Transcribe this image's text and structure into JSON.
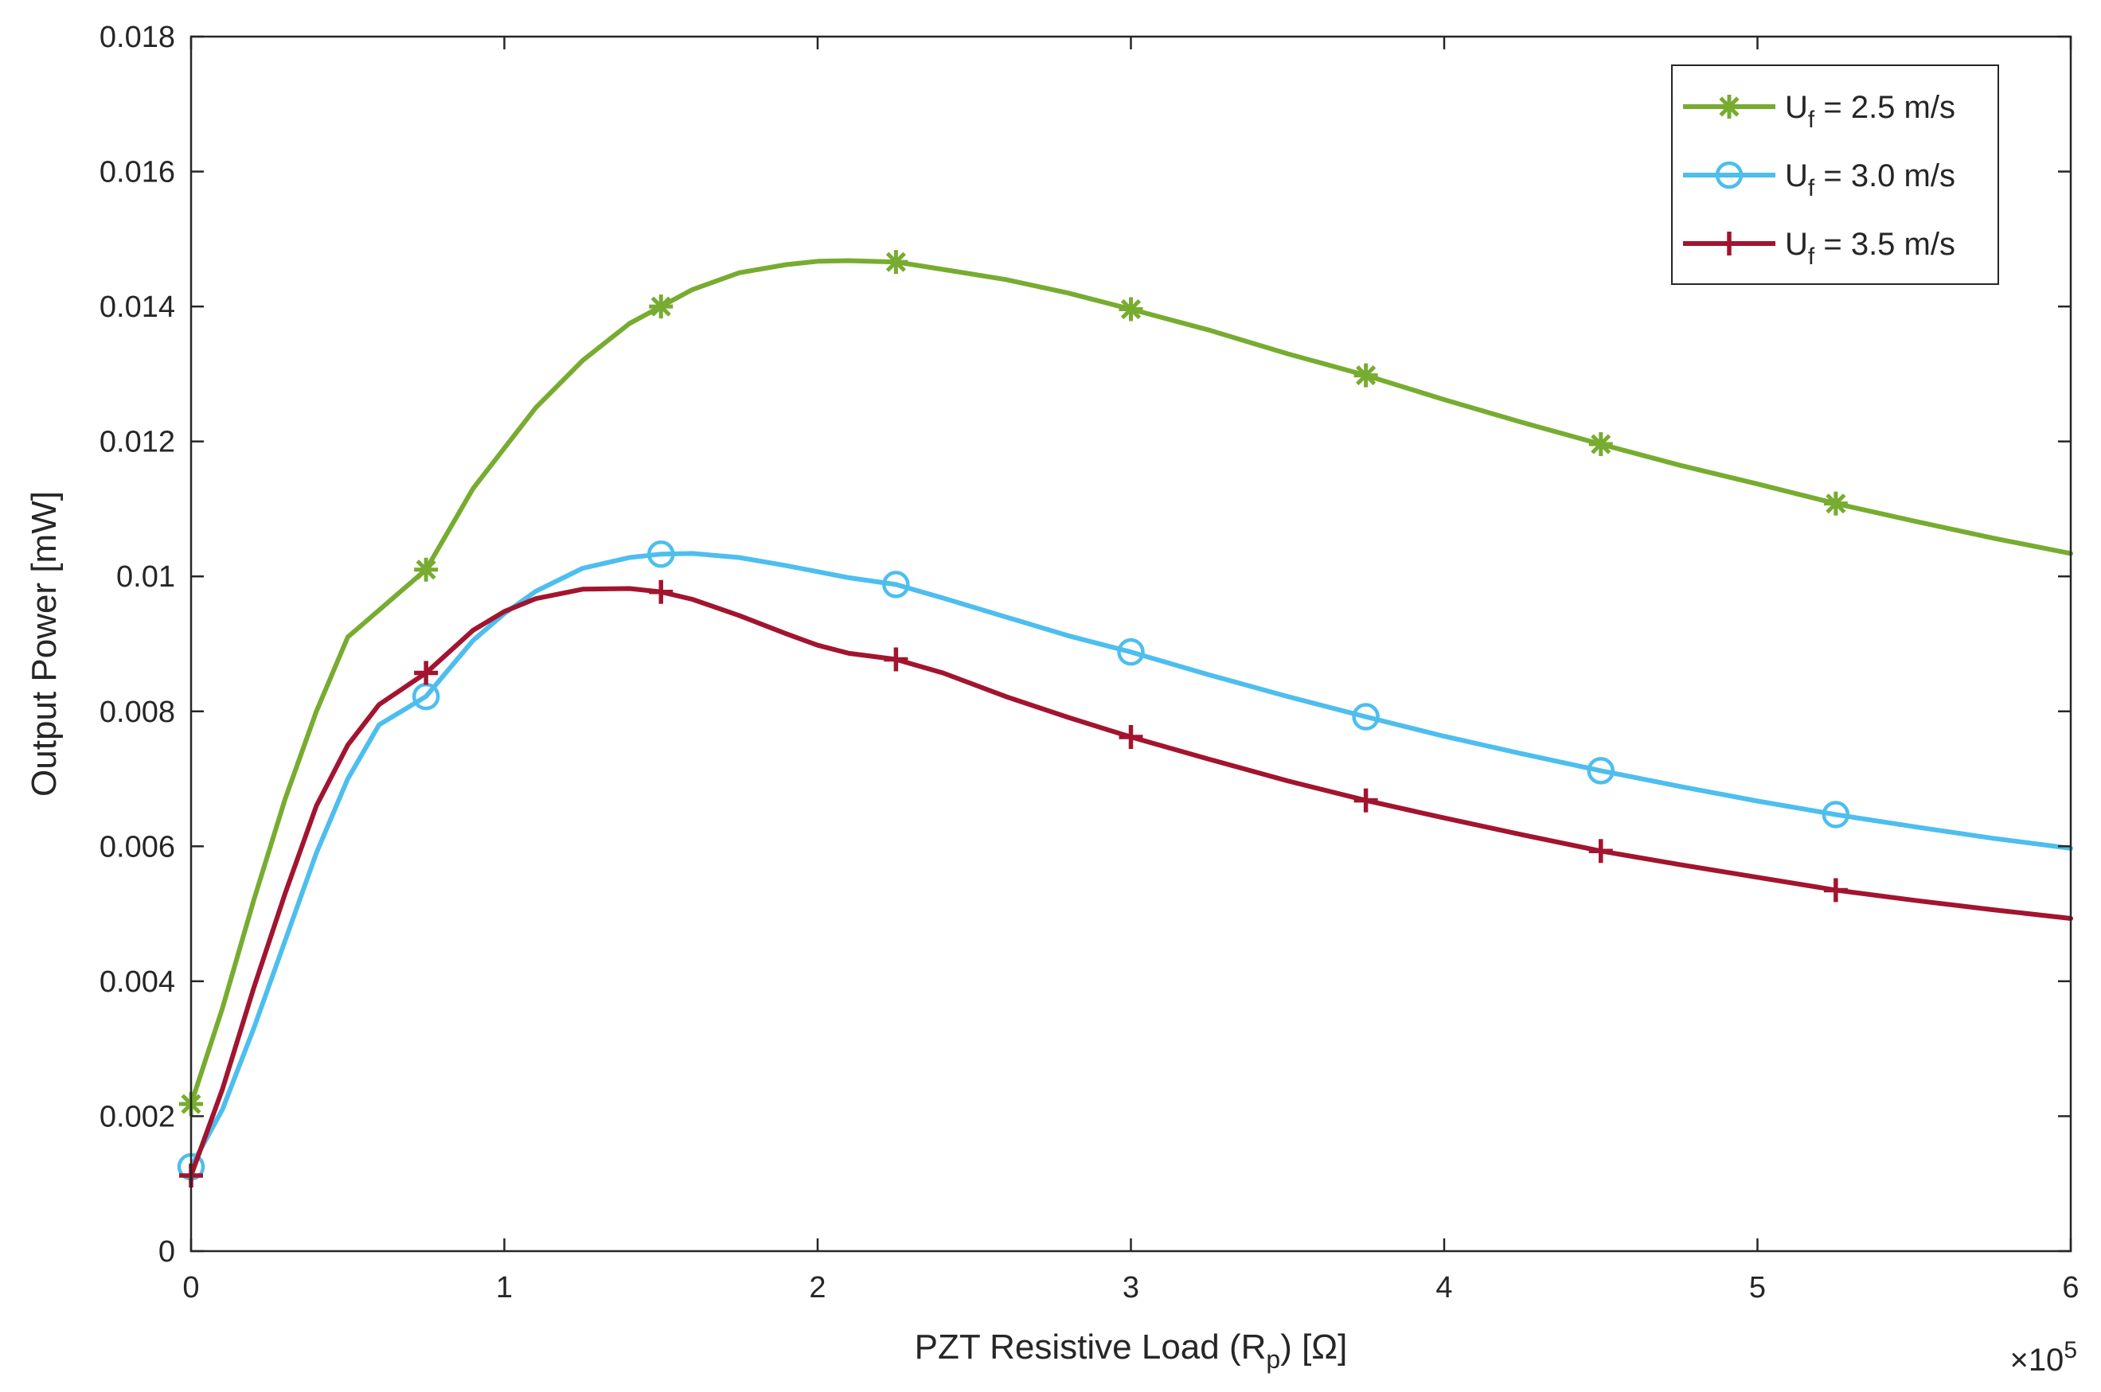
{
  "chart_data": {
    "type": "line",
    "title": "",
    "xlabel": "PZT Resistive Load (R_p) [Ω]",
    "xlabel_parts": {
      "pre": "PZT Resistive Load (R",
      "sub": "p",
      "post": ") [Ω]"
    },
    "ylabel": "Output Power [mW]",
    "xlim": [
      0,
      6
    ],
    "ylim": [
      0,
      0.018
    ],
    "x_exponent_label": {
      "base": "×10",
      "sup": "5"
    },
    "x_ticks": [
      0,
      1,
      2,
      3,
      4,
      5,
      6
    ],
    "x_tick_labels": [
      "0",
      "1",
      "2",
      "3",
      "4",
      "5",
      "6"
    ],
    "y_ticks": [
      0,
      0.002,
      0.004,
      0.006,
      0.008,
      0.01,
      0.012,
      0.014,
      0.016,
      0.018
    ],
    "y_tick_labels": [
      "0",
      "0.002",
      "0.004",
      "0.006",
      "0.008",
      "0.01",
      "0.012",
      "0.014",
      "0.016",
      "0.018"
    ],
    "grid": false,
    "legend_position": "top-right",
    "series": [
      {
        "name": "U_f = 2.5 m/s",
        "legend_parts": {
          "pre": "U",
          "sub": "f",
          "post": " = 2.5 m/s"
        },
        "color": "#77AC30",
        "marker": "asterisk",
        "marker_x": [
          0,
          0.75,
          1.5,
          2.25,
          3.0,
          3.75,
          4.5,
          5.25
        ],
        "marker_y": [
          0.00218,
          0.0101,
          0.014,
          0.01466,
          0.01396,
          0.01298,
          0.01196,
          0.01108
        ],
        "curve_x": [
          0,
          0.1,
          0.2,
          0.3,
          0.4,
          0.5,
          0.6,
          0.75,
          0.9,
          1.0,
          1.1,
          1.25,
          1.4,
          1.5,
          1.6,
          1.75,
          1.9,
          2.0,
          2.1,
          2.25,
          2.4,
          2.6,
          2.8,
          3.0,
          3.25,
          3.5,
          3.75,
          4.0,
          4.25,
          4.5,
          4.75,
          5.0,
          5.25,
          5.5,
          5.75,
          6.0
        ],
        "curve_y": [
          0.00218,
          0.0036,
          0.0052,
          0.0067,
          0.008,
          0.0091,
          0.0095,
          0.0101,
          0.0113,
          0.0119,
          0.0125,
          0.0132,
          0.01375,
          0.014,
          0.01425,
          0.0145,
          0.01462,
          0.01467,
          0.01468,
          0.01466,
          0.01455,
          0.0144,
          0.0142,
          0.01396,
          0.01365,
          0.0133,
          0.01298,
          0.01262,
          0.01228,
          0.01196,
          0.01165,
          0.01137,
          0.01108,
          0.01082,
          0.01057,
          0.01034
        ]
      },
      {
        "name": "U_f = 3.0 m/s",
        "legend_parts": {
          "pre": "U",
          "sub": "f",
          "post": " = 3.0 m/s"
        },
        "color": "#4DBEEE",
        "marker": "circle",
        "marker_x": [
          0,
          0.75,
          1.5,
          2.25,
          3.0,
          3.75,
          4.5,
          5.25
        ],
        "marker_y": [
          0.00125,
          0.00822,
          0.01033,
          0.00988,
          0.00888,
          0.00792,
          0.00712,
          0.00647
        ],
        "curve_x": [
          0,
          0.1,
          0.2,
          0.3,
          0.4,
          0.5,
          0.6,
          0.75,
          0.9,
          1.0,
          1.1,
          1.25,
          1.4,
          1.5,
          1.6,
          1.75,
          1.9,
          2.0,
          2.1,
          2.25,
          2.4,
          2.6,
          2.8,
          3.0,
          3.25,
          3.5,
          3.75,
          4.0,
          4.25,
          4.5,
          4.75,
          5.0,
          5.25,
          5.5,
          5.75,
          6.0
        ],
        "curve_y": [
          0.00125,
          0.0021,
          0.0033,
          0.0046,
          0.0059,
          0.007,
          0.0078,
          0.00822,
          0.00905,
          0.00945,
          0.00978,
          0.01012,
          0.01028,
          0.01033,
          0.01034,
          0.01028,
          0.01016,
          0.01007,
          0.00998,
          0.00988,
          0.00968,
          0.0094,
          0.00912,
          0.00888,
          0.00854,
          0.00822,
          0.00792,
          0.00763,
          0.00737,
          0.00712,
          0.00689,
          0.00667,
          0.00647,
          0.00629,
          0.00612,
          0.00597
        ]
      },
      {
        "name": "U_f = 3.5 m/s",
        "legend_parts": {
          "pre": "U",
          "sub": "f",
          "post": " = 3.5 m/s"
        },
        "color": "#A2142F",
        "marker": "plus",
        "marker_x": [
          0,
          0.75,
          1.5,
          2.25,
          3.0,
          3.75,
          4.5,
          5.25
        ],
        "marker_y": [
          0.00112,
          0.00857,
          0.00977,
          0.00877,
          0.00762,
          0.00668,
          0.00593,
          0.00535
        ],
        "curve_x": [
          0,
          0.1,
          0.2,
          0.3,
          0.4,
          0.5,
          0.6,
          0.75,
          0.9,
          1.0,
          1.1,
          1.25,
          1.4,
          1.5,
          1.6,
          1.75,
          1.9,
          2.0,
          2.1,
          2.25,
          2.4,
          2.6,
          2.8,
          3.0,
          3.25,
          3.5,
          3.75,
          4.0,
          4.25,
          4.5,
          4.75,
          5.0,
          5.25,
          5.5,
          5.75,
          6.0
        ],
        "curve_y": [
          0.00112,
          0.0024,
          0.0039,
          0.0053,
          0.0066,
          0.0075,
          0.0081,
          0.00857,
          0.0092,
          0.00948,
          0.00967,
          0.00981,
          0.00982,
          0.00977,
          0.00966,
          0.00942,
          0.00915,
          0.00898,
          0.00886,
          0.00877,
          0.00857,
          0.00822,
          0.00791,
          0.00762,
          0.00729,
          0.00697,
          0.00668,
          0.00642,
          0.00617,
          0.00593,
          0.00573,
          0.00554,
          0.00535,
          0.0052,
          0.00506,
          0.00493
        ]
      }
    ]
  }
}
